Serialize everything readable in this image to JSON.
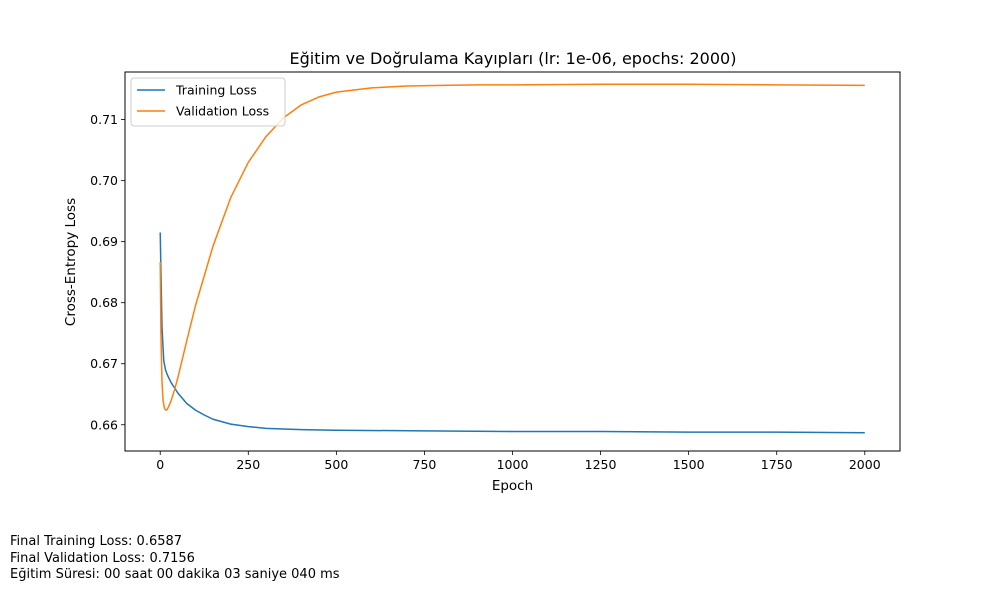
{
  "chart_data": {
    "type": "line",
    "title": "Eğitim ve Doğrulama Kayıpları (lr: 1e-06, epochs: 2000)",
    "xlabel": "Epoch",
    "ylabel": "Cross-Entropy Loss",
    "xlim": [
      -100,
      2100
    ],
    "ylim": [
      0.6557,
      0.7178
    ],
    "xticks": [
      0,
      250,
      500,
      750,
      1000,
      1250,
      1500,
      1750,
      2000
    ],
    "xtick_labels": [
      "0",
      "250",
      "500",
      "750",
      "1000",
      "1250",
      "1500",
      "1750",
      "2000"
    ],
    "yticks": [
      0.66,
      0.67,
      0.68,
      0.69,
      0.7,
      0.71
    ],
    "ytick_labels": [
      "0.66",
      "0.67",
      "0.68",
      "0.69",
      "0.70",
      "0.71"
    ],
    "legend_position": "top-left",
    "grid": false,
    "series": [
      {
        "name": "Training Loss",
        "color": "#1f77b4",
        "x": [
          0,
          2,
          5,
          10,
          15,
          20,
          30,
          40,
          50,
          75,
          100,
          125,
          150,
          200,
          250,
          300,
          400,
          500,
          750,
          1000,
          1250,
          1500,
          1750,
          2000
        ],
        "y": [
          0.6915,
          0.685,
          0.676,
          0.6705,
          0.669,
          0.6682,
          0.667,
          0.6661,
          0.6652,
          0.6635,
          0.6624,
          0.6616,
          0.6609,
          0.6601,
          0.6597,
          0.6594,
          0.6592,
          0.6591,
          0.659,
          0.6589,
          0.6589,
          0.6588,
          0.6588,
          0.6587
        ]
      },
      {
        "name": "Validation Loss",
        "color": "#ff7f0e",
        "x": [
          0,
          2,
          5,
          8,
          12,
          16,
          20,
          30,
          40,
          50,
          75,
          100,
          150,
          200,
          250,
          300,
          350,
          400,
          450,
          500,
          600,
          700,
          800,
          900,
          1000,
          1250,
          1500,
          1750,
          2000
        ],
        "y": [
          0.6867,
          0.675,
          0.667,
          0.664,
          0.6627,
          0.6624,
          0.6625,
          0.6638,
          0.6656,
          0.6677,
          0.6737,
          0.6795,
          0.6893,
          0.6972,
          0.703,
          0.7072,
          0.7103,
          0.7124,
          0.7137,
          0.7145,
          0.7152,
          0.7155,
          0.7156,
          0.7157,
          0.7157,
          0.7158,
          0.7158,
          0.7157,
          0.7156
        ]
      }
    ]
  },
  "footer": {
    "line1": "Final Training Loss: 0.6587",
    "line2": "Final Validation Loss: 0.7156",
    "line3": "Eğitim Süresi: 00 saat 00 dakika 03 saniye 040 ms"
  }
}
